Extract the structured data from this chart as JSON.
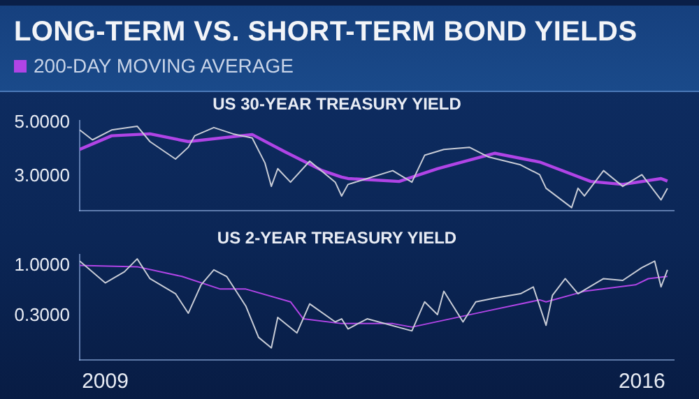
{
  "chart_data": [
    {
      "type": "line",
      "title": "LONG-TERM VS. SHORT-TERM BOND YIELDS",
      "subtitle": "US 30-YEAR TREASURY YIELD",
      "log": true,
      "grid": false,
      "legend": "top left",
      "marker": "none",
      "tick_labels": "y",
      "xlim": [
        "2008-09",
        "2016-06"
      ],
      "xticks": [
        "2009",
        "2016"
      ],
      "ylim": [
        2.15,
        5.1
      ],
      "yticks": [
        {
          "value": 3,
          "label": "3.0000"
        },
        {
          "value": 5,
          "label": "5.0000"
        }
      ],
      "series": [
        {
          "color": "#c8ccd6",
          "x": [
            "2008-09",
            "2008-11",
            "2009-02",
            "2009-06",
            "2009-08",
            "2009-12",
            "2010-02",
            "2010-03",
            "2010-06",
            "2010-09",
            "2010-12",
            "2011-02",
            "2011-03",
            "2011-04",
            "2011-06",
            "2011-09",
            "2012-01",
            "2012-02",
            "2012-03",
            "2012-06",
            "2012-10",
            "2013-01",
            "2013-03",
            "2013-06",
            "2013-10",
            "2014-01",
            "2014-06",
            "2014-09",
            "2014-10",
            "2015-02",
            "2015-03",
            "2015-04",
            "2015-07",
            "2015-10",
            "2016-01",
            "2016-04",
            "2016-05"
          ],
          "values": [
            4.66,
            4.24,
            4.66,
            4.83,
            4.17,
            3.53,
            3.95,
            4.41,
            4.77,
            4.49,
            4.32,
            3.4,
            2.72,
            3.22,
            2.83,
            3.46,
            2.83,
            2.48,
            2.77,
            2.93,
            3.16,
            2.83,
            3.66,
            3.87,
            3.95,
            3.6,
            3.34,
            3.04,
            2.67,
            2.22,
            2.67,
            2.48,
            3.16,
            2.72,
            3.04,
            2.39,
            2.67
          ]
        },
        {
          "name": "200-DAY MOVING AVERAGE",
          "color": "#b044e6",
          "x": [
            "2008-09",
            "2009-02",
            "2009-08",
            "2010-02",
            "2010-12",
            "2011-05",
            "2011-11",
            "2012-02",
            "2012-03",
            "2012-11",
            "2013-05",
            "2014-02",
            "2014-09",
            "2015-05",
            "2015-10",
            "2016-04",
            "2016-05"
          ],
          "values": [
            3.87,
            4.41,
            4.49,
            4.17,
            4.46,
            3.8,
            3.16,
            2.97,
            2.93,
            2.85,
            3.22,
            3.73,
            3.43,
            2.85,
            2.77,
            2.93,
            2.86
          ]
        }
      ]
    },
    {
      "type": "line",
      "title": "US 2-YEAR TREASURY YIELD",
      "log": true,
      "grid": false,
      "marker": "none",
      "xlim": [
        "2008-09",
        "2016-06"
      ],
      "xticks": [
        "2009",
        "2016"
      ],
      "ylim": [
        0.105,
        1.3
      ],
      "yticks": [
        {
          "value": 0.3,
          "label": "0.3000"
        },
        {
          "value": 1,
          "label": "1.0000"
        }
      ],
      "series": [
        {
          "color": "#c8ccd6",
          "x": [
            "2008-09",
            "2009-01",
            "2009-04",
            "2009-06",
            "2009-08",
            "2009-12",
            "2010-02",
            "2010-04",
            "2010-06",
            "2010-08",
            "2010-11",
            "2011-01",
            "2011-03",
            "2011-04",
            "2011-07",
            "2011-09",
            "2012-01",
            "2012-02",
            "2012-03",
            "2012-06",
            "2013-01",
            "2013-03",
            "2013-05",
            "2013-06",
            "2013-09",
            "2013-11",
            "2014-02",
            "2014-06",
            "2014-08",
            "2014-10",
            "2014-11",
            "2015-01",
            "2015-03",
            "2015-07",
            "2015-10",
            "2016-01",
            "2016-03",
            "2016-04",
            "2016-05"
          ],
          "values": [
            1.11,
            0.66,
            0.86,
            1.17,
            0.73,
            0.51,
            0.32,
            0.63,
            0.9,
            0.77,
            0.38,
            0.18,
            0.14,
            0.29,
            0.2,
            0.4,
            0.26,
            0.28,
            0.22,
            0.28,
            0.21,
            0.42,
            0.31,
            0.54,
            0.26,
            0.42,
            0.46,
            0.51,
            0.6,
            0.24,
            0.49,
            0.73,
            0.51,
            0.73,
            0.7,
            0.95,
            1.11,
            0.6,
            0.9
          ]
        },
        {
          "color": "#b044e6",
          "x": [
            "2008-09",
            "2009-06",
            "2010-01",
            "2010-07",
            "2010-11",
            "2011-06",
            "2011-08",
            "2012-02",
            "2012-03",
            "2012-10",
            "2013-01",
            "2014-01",
            "2014-09",
            "2014-10",
            "2015-04",
            "2015-12",
            "2016-02",
            "2016-05"
          ],
          "values": [
            1.0,
            0.97,
            0.77,
            0.57,
            0.57,
            0.42,
            0.28,
            0.25,
            0.25,
            0.25,
            0.23,
            0.34,
            0.44,
            0.42,
            0.54,
            0.63,
            0.73,
            0.77
          ]
        }
      ]
    }
  ]
}
